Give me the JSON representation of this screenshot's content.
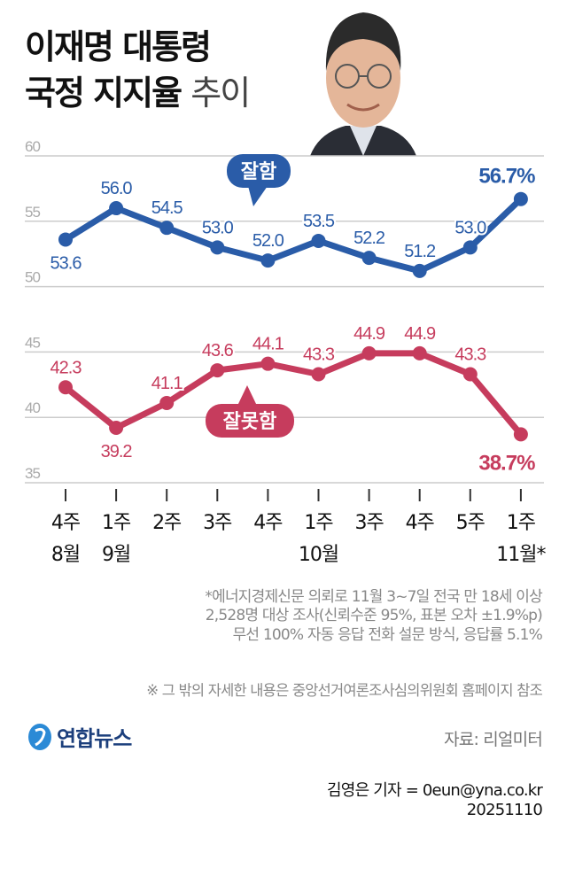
{
  "title": {
    "line1": "이재명 대통령",
    "line2_bold": "국정 지지율",
    "line2_light": "추이"
  },
  "colors": {
    "approve": "#2a5ca8",
    "disapprove": "#c63c5d",
    "grid": "#cccccc",
    "tick": "#aaaaaa"
  },
  "chart_data": {
    "type": "line",
    "ylim": [
      35,
      60
    ],
    "yticks": [
      "60",
      "55",
      "50",
      "45",
      "40",
      "35"
    ],
    "grid": true,
    "x_week_labels": [
      "4주",
      "1주",
      "2주",
      "3주",
      "4주",
      "1주",
      "3주",
      "4주",
      "5주",
      "1주"
    ],
    "x_month_labels": [
      "8월",
      "9월",
      "",
      "",
      "",
      "10월",
      "",
      "",
      "",
      "11월*"
    ],
    "series": [
      {
        "name": "잘함",
        "values": [
          53.6,
          56.0,
          54.5,
          53.0,
          52.0,
          53.5,
          52.2,
          51.2,
          53.0,
          56.7
        ],
        "labels": [
          "53.6",
          "56.0",
          "54.5",
          "53.0",
          "52.0",
          "53.5",
          "52.2",
          "51.2",
          "53.0",
          "56.7%"
        ]
      },
      {
        "name": "잘못함",
        "values": [
          42.3,
          39.2,
          41.1,
          43.6,
          44.1,
          43.3,
          44.9,
          44.9,
          43.3,
          38.7
        ],
        "labels": [
          "42.3",
          "39.2",
          "41.1",
          "43.6",
          "44.1",
          "43.3",
          "44.9",
          "44.9",
          "43.3",
          "38.7%"
        ]
      }
    ]
  },
  "notes": [
    "*에너지경제신문 의뢰로 11월 3~7일 전국 만 18세 이상",
    "2,528명 대상 조사(신뢰수준 95%, 표본 오차 ±1.9%p)",
    "무선 100% 자동 응답 전화 설문 방식, 응답률 5.1%"
  ],
  "disclaimer": "※ 그 밖의 자세한 내용은 중앙선거여론조사심의위원회 홈페이지 참조",
  "logo": "연합뉴스",
  "source": "자료: 리얼미터",
  "byline": "김영은 기자 = 0eun@yna.co.kr",
  "date": "20251110"
}
